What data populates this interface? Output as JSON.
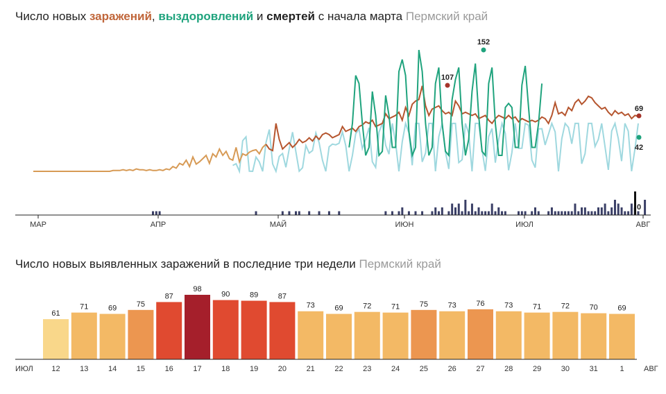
{
  "chart_data": [
    {
      "type": "line",
      "title": {
        "prefix": "Число новых ",
        "w1": "заражений",
        "sep1": ", ",
        "w2": "выздоровлений",
        "sep2": " и ",
        "w3": "смертей",
        "suffix": " с начала марта",
        "region": "Пермский край"
      },
      "x_ticks": [
        "МАР",
        "АПР",
        "МАЙ",
        "ИЮН",
        "ИЮЛ",
        "АВГ"
      ],
      "series": [
        {
          "name": "заражений",
          "color": "#b5552e",
          "values": [
            0,
            0,
            0,
            0,
            0,
            0,
            0,
            0,
            0,
            0,
            0,
            0,
            0,
            0,
            0,
            0,
            0,
            0,
            0,
            0,
            0,
            0,
            0,
            0,
            1,
            1,
            1,
            2,
            1,
            2,
            1,
            3,
            2,
            2,
            1,
            2,
            1,
            1,
            2,
            1,
            3,
            2,
            6,
            4,
            10,
            8,
            14,
            6,
            18,
            9,
            12,
            16,
            20,
            10,
            22,
            18,
            28,
            20,
            25,
            16,
            14,
            30,
            12,
            22,
            20,
            24,
            26,
            27,
            22,
            30,
            34,
            28,
            26,
            60,
            40,
            28,
            32,
            36,
            30,
            34,
            40,
            36,
            38,
            42,
            38,
            44,
            40,
            46,
            48,
            46,
            42,
            44,
            46,
            56,
            50,
            52,
            54,
            50,
            56,
            58,
            62,
            60,
            64,
            56,
            58,
            60,
            72,
            66,
            68,
            70,
            74,
            64,
            80,
            70,
            84,
            88,
            90,
            107,
            82,
            70,
            78,
            80,
            82,
            76,
            72,
            74,
            70,
            88,
            82,
            72,
            74,
            72,
            70,
            72,
            66,
            68,
            70,
            64,
            60,
            66,
            70,
            68,
            66,
            70,
            66,
            68,
            62,
            66,
            64,
            62,
            64,
            62,
            64,
            68,
            66,
            60,
            70,
            86,
            72,
            74,
            70,
            80,
            76,
            86,
            90,
            84,
            88,
            94,
            92,
            86,
            82,
            78,
            80,
            74,
            70,
            76,
            72,
            74,
            70,
            72,
            66,
            70,
            69
          ]
        },
        {
          "name": "выздоровлений",
          "color": "#1fa37d",
          "values": [
            null,
            null,
            null,
            null,
            null,
            null,
            null,
            null,
            null,
            null,
            null,
            null,
            null,
            null,
            null,
            null,
            null,
            null,
            null,
            null,
            null,
            null,
            null,
            null,
            null,
            null,
            null,
            null,
            null,
            null,
            null,
            null,
            null,
            null,
            null,
            null,
            null,
            null,
            null,
            null,
            null,
            null,
            null,
            null,
            null,
            null,
            null,
            null,
            null,
            null,
            null,
            null,
            null,
            null,
            null,
            null,
            null,
            null,
            null,
            null,
            null,
            null,
            null,
            null,
            null,
            null,
            null,
            null,
            null,
            null,
            null,
            null,
            null,
            null,
            null,
            null,
            null,
            null,
            null,
            null,
            null,
            null,
            null,
            null,
            null,
            null,
            null,
            null,
            null,
            null,
            null,
            null,
            null,
            null,
            null,
            null,
            null,
            null,
            null,
            null,
            null,
            null,
            null,
            null,
            null,
            null,
            null,
            null,
            null,
            null,
            null,
            null,
            null,
            null,
            null,
            null,
            null,
            null,
            null,
            null,
            null,
            null,
            null,
            null,
            null,
            null,
            null,
            null,
            null,
            null,
            null,
            null,
            null,
            null,
            null,
            null,
            null,
            null,
            null,
            null,
            null,
            null,
            null,
            null,
            null,
            null,
            null,
            null,
            null,
            null,
            null,
            null,
            null,
            null,
            null,
            null,
            null,
            null,
            null,
            null,
            null,
            null,
            null,
            null,
            null,
            null,
            null,
            null,
            null,
            null,
            null,
            null,
            null,
            null,
            null,
            null,
            null,
            null,
            null,
            null,
            null,
            null,
            null,
            null,
            null,
            null,
            null,
            null,
            null,
            null,
            null,
            null,
            null,
            null,
            null,
            null,
            null,
            null,
            null,
            null,
            null,
            null,
            null,
            null,
            null,
            null,
            null,
            null,
            null,
            null,
            42
          ],
          "segments_dark": [
            [
              95,
              30
            ],
            [
              96,
              60
            ],
            [
              97,
              120
            ],
            [
              98,
              110
            ],
            [
              99,
              60
            ],
            [
              100,
              20
            ],
            [
              101,
              30
            ],
            [
              102,
              100
            ],
            [
              103,
              70
            ],
            [
              104,
              20
            ],
            [
              105,
              25
            ],
            [
              106,
              95
            ],
            [
              107,
              70
            ],
            [
              108,
              30
            ],
            [
              109,
              30
            ],
            [
              110,
              125
            ],
            [
              111,
              140
            ],
            [
              112,
              120
            ],
            [
              113,
              50
            ],
            [
              114,
              20
            ],
            [
              115,
              30
            ],
            [
              116,
              152
            ],
            [
              117,
              125
            ],
            [
              118,
              60
            ],
            [
              119,
              20
            ],
            [
              120,
              30
            ],
            [
              121,
              110
            ],
            [
              122,
              130
            ],
            [
              123,
              60
            ],
            [
              124,
              25
            ],
            [
              125,
              20
            ],
            [
              126,
              90
            ],
            [
              127,
              115
            ],
            [
              128,
              130
            ],
            [
              129,
              60
            ],
            [
              130,
              20
            ],
            [
              131,
              40
            ],
            [
              132,
              100
            ],
            [
              133,
              135
            ],
            [
              134,
              70
            ],
            [
              135,
              25
            ],
            [
              136,
              20
            ],
            [
              137,
              110
            ],
            [
              138,
              130
            ],
            [
              139,
              60
            ],
            [
              140,
              20
            ],
            [
              141,
              20
            ],
            [
              142,
              80
            ],
            [
              143,
              85
            ],
            [
              144,
              80
            ],
            [
              145,
              30
            ],
            [
              146,
              30
            ],
            [
              147,
              108
            ],
            [
              148,
              132
            ],
            [
              149,
              80
            ],
            [
              150,
              30
            ],
            [
              151,
              30
            ],
            [
              152,
              60
            ],
            [
              153,
              110
            ]
          ]
        },
        {
          "name": "смертей",
          "color": "#3a3f66",
          "values": [
            0,
            0,
            0,
            0,
            0,
            0,
            0,
            0,
            0,
            0,
            0,
            0,
            0,
            0,
            0,
            0,
            0,
            0,
            0,
            0,
            0,
            0,
            0,
            0,
            0,
            0,
            0,
            0,
            0,
            0,
            0,
            0,
            0,
            0,
            0,
            0,
            1,
            1,
            1,
            0,
            0,
            0,
            0,
            0,
            0,
            0,
            0,
            0,
            0,
            0,
            0,
            0,
            0,
            0,
            0,
            0,
            0,
            0,
            0,
            0,
            0,
            0,
            0,
            0,
            0,
            0,
            0,
            1,
            0,
            0,
            0,
            0,
            0,
            0,
            0,
            1,
            0,
            1,
            0,
            1,
            1,
            0,
            0,
            1,
            0,
            0,
            1,
            0,
            0,
            1,
            0,
            0,
            1,
            0,
            0,
            0,
            0,
            0,
            0,
            0,
            0,
            0,
            0,
            0,
            0,
            0,
            1,
            0,
            1,
            0,
            1,
            2,
            0,
            1,
            0,
            1,
            0,
            1,
            0,
            0,
            1,
            2,
            1,
            2,
            0,
            1,
            3,
            2,
            3,
            1,
            4,
            1,
            3,
            1,
            2,
            1,
            1,
            1,
            3,
            1,
            2,
            1,
            1,
            0,
            0,
            0,
            1,
            1,
            1,
            0,
            1,
            2,
            1,
            0,
            0,
            1,
            2,
            1,
            1,
            1,
            1,
            1,
            1,
            3,
            1,
            2,
            2,
            1,
            1,
            1,
            2,
            2,
            3,
            1,
            2,
            4,
            3,
            2,
            1,
            1,
            3,
            2,
            1,
            0,
            4,
            0
          ]
        }
      ],
      "annotations": [
        {
          "text": "152",
          "series": "выздоровлений"
        },
        {
          "text": "107",
          "series": "заражений"
        },
        {
          "text": "69",
          "series": "заражений"
        },
        {
          "text": "42",
          "series": "выздоровлений"
        },
        {
          "text": "0",
          "series": "смертей"
        }
      ]
    },
    {
      "type": "bar",
      "title": "Число новых выявленных заражений в последние три недели",
      "region": "Пермский край",
      "x_start_label": "ИЮЛ",
      "x_end_label": "АВГ",
      "categories": [
        "12",
        "13",
        "14",
        "15",
        "16",
        "17",
        "18",
        "19",
        "20",
        "21",
        "22",
        "23",
        "24",
        "25",
        "26",
        "27",
        "28",
        "29",
        "30",
        "31",
        "1"
      ],
      "weekend": [
        true,
        false,
        false,
        false,
        false,
        false,
        true,
        true,
        false,
        false,
        false,
        false,
        false,
        true,
        true,
        false,
        false,
        false,
        false,
        false,
        true
      ],
      "values": [
        61,
        71,
        69,
        75,
        87,
        98,
        90,
        89,
        87,
        73,
        69,
        72,
        71,
        75,
        73,
        76,
        73,
        71,
        72,
        70,
        69
      ],
      "colors": {
        "low": "#f9d78a",
        "mid": "#f3b965",
        "high": "#e04a30",
        "peak": "#a51f2b",
        "weekend_label": "#c0392b"
      }
    }
  ]
}
